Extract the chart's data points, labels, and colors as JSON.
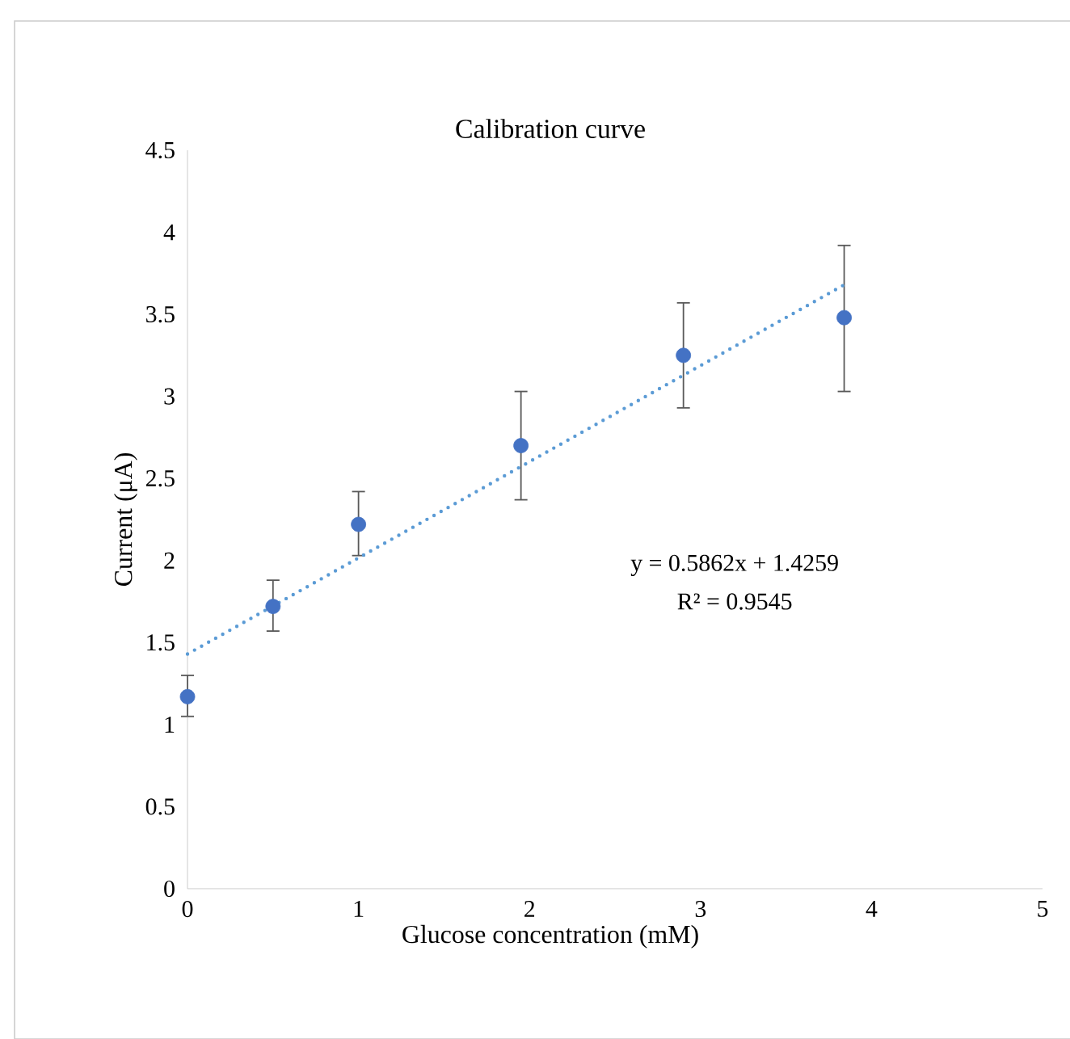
{
  "chart_data": {
    "type": "scatter",
    "title": "Calibration curve",
    "xlabel": "Glucose concentration (mM)",
    "ylabel": "Current (μA)",
    "xlim": [
      0,
      5
    ],
    "xticks": [
      0,
      1,
      2,
      3,
      4,
      5
    ],
    "ylim": [
      0,
      4.5
    ],
    "yticks": [
      0,
      0.5,
      1,
      1.5,
      2,
      2.5,
      3,
      3.5,
      4,
      4.5
    ],
    "grid": false,
    "marker": "circle",
    "annotations": [
      "y = 0.5862x  + 1.4259",
      "R² = 0.9545"
    ],
    "series": [
      {
        "color": "#4472c4",
        "x": [
          0,
          0.5,
          1,
          1.95,
          2.9,
          3.84
        ],
        "values": [
          1.17,
          1.72,
          2.22,
          2.7,
          3.25,
          3.48
        ],
        "errors": [
          [
            1.05,
            1.3
          ],
          [
            1.57,
            1.88
          ],
          [
            2.03,
            2.42
          ],
          [
            2.37,
            3.03
          ],
          [
            2.93,
            3.57
          ],
          [
            3.03,
            3.92
          ]
        ]
      },
      {
        "type": "line",
        "color": "#5b9bd5",
        "line_style": "dotted",
        "marker": "none",
        "x": [
          0,
          3.84
        ],
        "values": [
          1.43,
          3.68
        ]
      }
    ]
  }
}
